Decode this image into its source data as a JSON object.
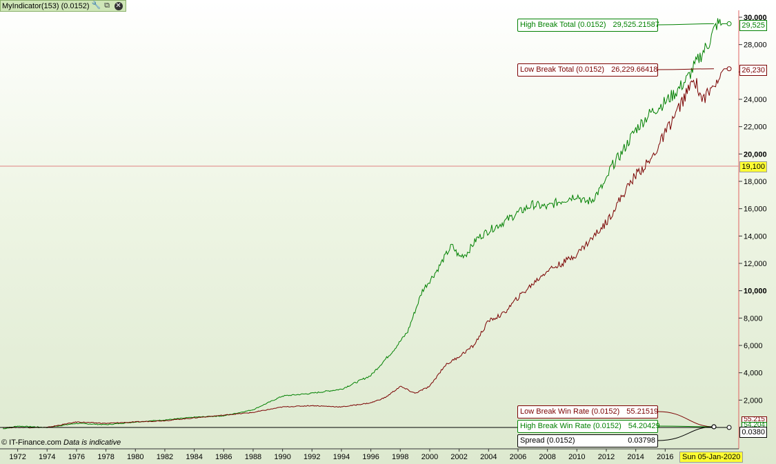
{
  "header": {
    "indicator_title": "MyIndicator(153) (0.0152)",
    "icons": [
      "wrench-icon",
      "window-icon",
      "close-icon"
    ]
  },
  "colors": {
    "high": "#008000",
    "low": "#7a0000",
    "spread": "#000000",
    "crosshair": "#e05555",
    "highlight": "#ffff33"
  },
  "labels": {
    "high_total": {
      "name": "High Break Total (0.0152)",
      "value": "29,525.21587",
      "tag": "29,525"
    },
    "low_total": {
      "name": "Low Break Total (0.0152)",
      "value": "26,229.66418",
      "tag": "26,230"
    },
    "low_winrate": {
      "name": "Low Break Win Rate (0.0152)",
      "value": "55.21519",
      "tag": "55.215"
    },
    "high_winrate": {
      "name": "High Break Win Rate (0.0152)",
      "value": "54.20429",
      "tag": "54.204"
    },
    "spread": {
      "name": "Spread (0.0152)",
      "value": "0.03798",
      "tag": "0.0380"
    }
  },
  "crosshair": {
    "value": "19,100",
    "date": "Sun 05-Jan-2020"
  },
  "footer": {
    "source": "© IT-Finance.com",
    "note": "Data is indicative"
  },
  "chart_data": {
    "type": "line",
    "x_range": [
      1970.8,
      2021.0
    ],
    "ylim": [
      0,
      30000
    ],
    "y_ticks": [
      "2,000",
      "4,000",
      "6,000",
      "8,000",
      "10,000",
      "12,000",
      "14,000",
      "16,000",
      "18,000",
      "20,000",
      "22,000",
      "24,000",
      "26,000",
      "28,000",
      "30,000"
    ],
    "x_ticks": [
      "1972",
      "1974",
      "1976",
      "1978",
      "1980",
      "1982",
      "1984",
      "1986",
      "1988",
      "1990",
      "1992",
      "1994",
      "1996",
      "1998",
      "2000",
      "2002",
      "2004",
      "2006",
      "2008",
      "2010",
      "2012",
      "2014",
      "2016"
    ],
    "grid": false,
    "series": [
      {
        "name": "High Break Total (0.0152)",
        "color": "#008000",
        "x": [
          1971.0,
          1972.0,
          1974.0,
          1976.0,
          1978.0,
          1980.0,
          1982.0,
          1984.0,
          1986.0,
          1988.0,
          1990.0,
          1992.0,
          1994.0,
          1996.0,
          1997.5,
          1998.5,
          1999.5,
          2000.5,
          2001.2,
          2001.5,
          2002.0,
          2002.5,
          2003.2,
          2004.0,
          2005.0,
          2006.0,
          2007.0,
          2008.0,
          2008.5,
          2009.5,
          2010.0,
          2010.5,
          2011.0,
          2012.0,
          2012.3,
          2013.0,
          2014.0,
          2015.0,
          2016.0,
          2016.7,
          2017.5,
          2018.3,
          2019.0,
          2019.5,
          2020.0,
          2020.3
        ],
        "y": [
          -100,
          100,
          0,
          300,
          200,
          400,
          550,
          750,
          850,
          1300,
          2300,
          2500,
          2800,
          3800,
          5600,
          7000,
          10000,
          11500,
          12800,
          13300,
          12500,
          12700,
          13800,
          14400,
          15000,
          15700,
          16300,
          16100,
          16400,
          16800,
          17000,
          16500,
          16600,
          18000,
          19000,
          20000,
          21800,
          23000,
          23800,
          24500,
          25500,
          27000,
          28200,
          29500,
          29525,
          29525
        ]
      },
      {
        "name": "Low Break Total (0.0152)",
        "color": "#7a0000",
        "x": [
          1971.0,
          1972.0,
          1974.0,
          1976.0,
          1978.0,
          1980.0,
          1982.0,
          1984.0,
          1986.0,
          1988.0,
          1990.0,
          1992.0,
          1994.0,
          1996.0,
          1997.0,
          1998.0,
          1999.0,
          2000.0,
          2001.0,
          2002.0,
          2003.0,
          2004.0,
          2005.0,
          2006.0,
          2007.0,
          2008.0,
          2009.0,
          2010.0,
          2011.0,
          2012.0,
          2013.0,
          2014.0,
          2015.0,
          2016.0,
          2017.0,
          2018.0,
          2018.5,
          2019.0,
          2019.5,
          2020.0,
          2020.3
        ],
        "y": [
          0,
          0,
          0,
          400,
          300,
          400,
          500,
          700,
          900,
          1100,
          1500,
          1600,
          1500,
          1800,
          2200,
          3000,
          2500,
          3000,
          4500,
          5200,
          6000,
          7800,
          8300,
          9500,
          10500,
          11500,
          12000,
          12700,
          13800,
          15000,
          16800,
          18500,
          19500,
          21500,
          23500,
          25500,
          24000,
          24500,
          25500,
          26230,
          26230
        ]
      },
      {
        "name": "Spread (0.0152)",
        "color": "#000000",
        "x": [
          1970.8,
          2020.3
        ],
        "y": [
          0,
          0
        ]
      }
    ]
  }
}
